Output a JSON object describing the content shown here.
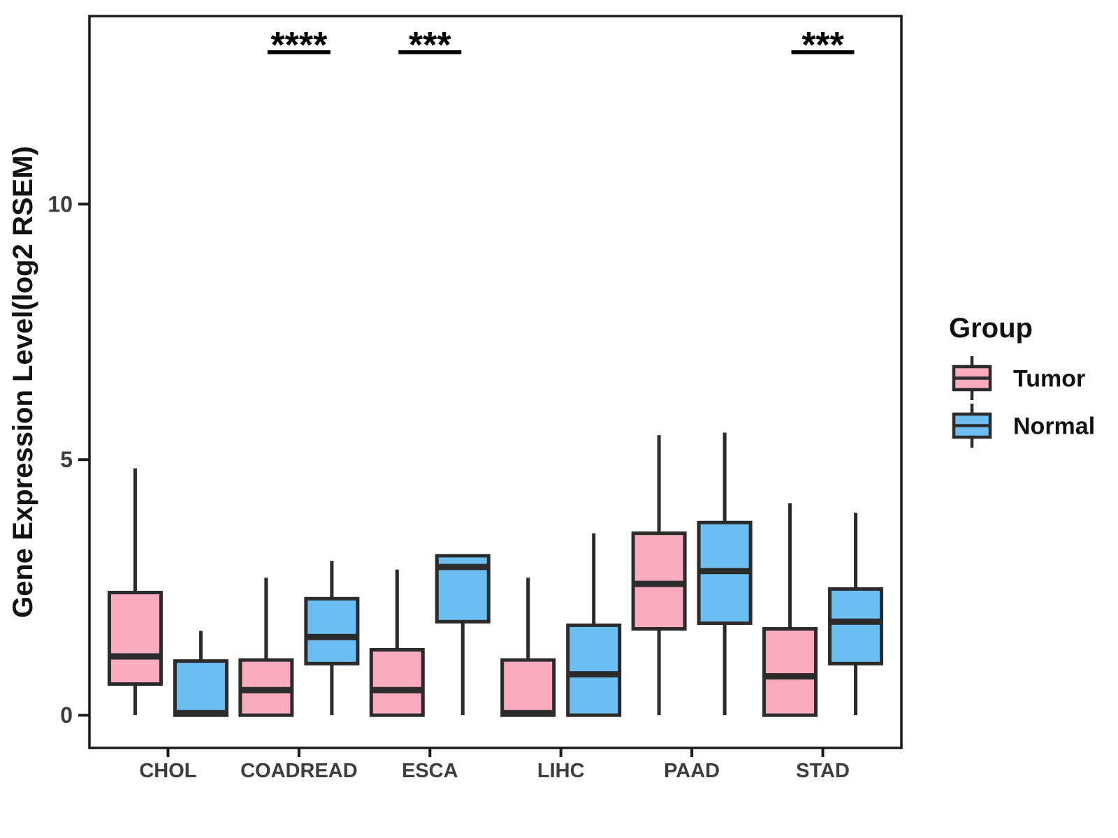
{
  "chart_data": {
    "type": "boxplot",
    "title": "",
    "xlabel": "",
    "ylabel": "Gene Expression Level(log2 RSEM)",
    "ylim": [
      -0.64,
      13.68
    ],
    "yticks": [
      0,
      5,
      10
    ],
    "grid": "off",
    "legend_position": "right",
    "categories": [
      "CHOL",
      "COADREAD",
      "ESCA",
      "LIHC",
      "PAAD",
      "STAD"
    ],
    "series": [
      {
        "name": "Tumor",
        "color": "#FAACBE",
        "boxes": [
          {
            "category": "CHOL",
            "min": 0,
            "q1": 0.61,
            "median": 1.15,
            "q3": 2.4,
            "max": 4.83
          },
          {
            "category": "COADREAD",
            "min": 0,
            "q1": 0.0,
            "median": 0.49,
            "q3": 1.08,
            "max": 2.69
          },
          {
            "category": "ESCA",
            "min": 0,
            "q1": 0.0,
            "median": 0.49,
            "q3": 1.28,
            "max": 2.85
          },
          {
            "category": "LIHC",
            "min": 0,
            "q1": 0.0,
            "median": 0.04,
            "q3": 1.08,
            "max": 2.69
          },
          {
            "category": "PAAD",
            "min": 0,
            "q1": 1.69,
            "median": 2.57,
            "q3": 3.56,
            "max": 5.48
          },
          {
            "category": "STAD",
            "min": 0,
            "q1": 0.0,
            "median": 0.76,
            "q3": 1.69,
            "max": 4.15
          }
        ]
      },
      {
        "name": "Normal",
        "color": "#6CBEF3",
        "boxes": [
          {
            "category": "CHOL",
            "min": 0,
            "q1": 0.0,
            "median": 0.04,
            "q3": 1.06,
            "max": 1.65
          },
          {
            "category": "COADREAD",
            "min": 0,
            "q1": 1.01,
            "median": 1.53,
            "q3": 2.28,
            "max": 3.02
          },
          {
            "category": "ESCA",
            "min": 0,
            "q1": 1.83,
            "median": 2.9,
            "q3": 3.12,
            "max": 3.12
          },
          {
            "category": "LIHC",
            "min": 0,
            "q1": 0.0,
            "median": 0.8,
            "q3": 1.76,
            "max": 3.56
          },
          {
            "category": "PAAD",
            "min": 0,
            "q1": 1.8,
            "median": 2.82,
            "q3": 3.77,
            "max": 5.53
          },
          {
            "category": "STAD",
            "min": 0,
            "q1": 1.01,
            "median": 1.83,
            "q3": 2.47,
            "max": 3.96
          }
        ]
      }
    ],
    "significance": [
      {
        "category": "COADREAD",
        "label": "****"
      },
      {
        "category": "ESCA",
        "label": "***"
      },
      {
        "category": "STAD",
        "label": "***"
      }
    ],
    "legend": {
      "title": "Group",
      "entries": [
        {
          "label": "Tumor",
          "color": "#FAACBE"
        },
        {
          "label": "Normal",
          "color": "#6CBEF3"
        }
      ]
    },
    "colors": {
      "box_stroke": "#2B2B2B",
      "frame": "#1A1A1A",
      "tick_text": "#3D3D3D",
      "title_text": "#111111",
      "annotation": "#000000"
    }
  }
}
